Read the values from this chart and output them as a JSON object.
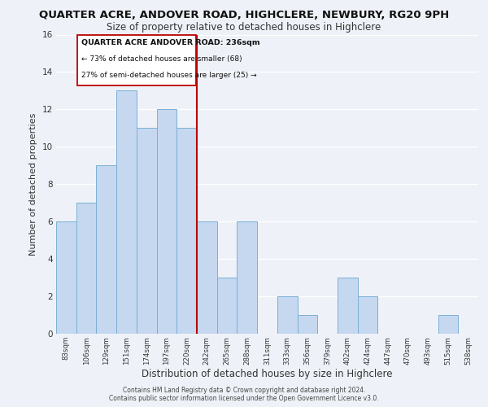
{
  "title": "QUARTER ACRE, ANDOVER ROAD, HIGHCLERE, NEWBURY, RG20 9PH",
  "subtitle": "Size of property relative to detached houses in Highclere",
  "xlabel": "Distribution of detached houses by size in Highclere",
  "ylabel": "Number of detached properties",
  "bins": [
    "83sqm",
    "106sqm",
    "129sqm",
    "151sqm",
    "174sqm",
    "197sqm",
    "220sqm",
    "242sqm",
    "265sqm",
    "288sqm",
    "311sqm",
    "333sqm",
    "356sqm",
    "379sqm",
    "402sqm",
    "424sqm",
    "447sqm",
    "470sqm",
    "493sqm",
    "515sqm",
    "538sqm"
  ],
  "counts": [
    6,
    7,
    9,
    13,
    11,
    12,
    11,
    6,
    3,
    6,
    0,
    2,
    1,
    0,
    3,
    2,
    0,
    0,
    0,
    1,
    0
  ],
  "bar_color": "#c5d8f0",
  "bar_edge_color": "#7bafd4",
  "reference_line_color": "#bb0000",
  "ylim": [
    0,
    16
  ],
  "yticks": [
    0,
    2,
    4,
    6,
    8,
    10,
    12,
    14,
    16
  ],
  "annotation_title": "QUARTER ACRE ANDOVER ROAD: 236sqm",
  "annotation_line1": "← 73% of detached houses are smaller (68)",
  "annotation_line2": "27% of semi-detached houses are larger (25) →",
  "footer_line1": "Contains HM Land Registry data © Crown copyright and database right 2024.",
  "footer_line2": "Contains public sector information licensed under the Open Government Licence v3.0.",
  "background_color": "#eef2f8",
  "grid_color": "#ffffff",
  "title_fontsize": 9.5,
  "subtitle_fontsize": 8.5
}
